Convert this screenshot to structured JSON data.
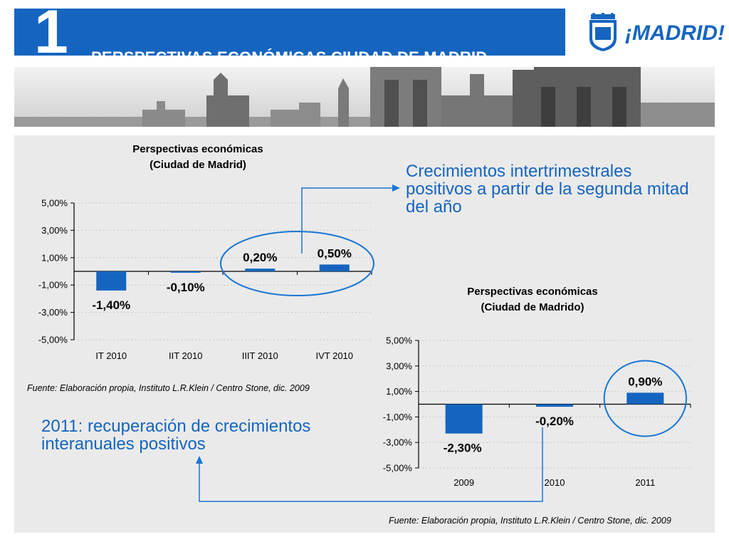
{
  "header": {
    "slide_number": "1",
    "title": "PERSPECTIVAS ECONÓMICAS CIUDAD DE MADRID",
    "color": "#1565c0"
  },
  "logo": {
    "text": "¡MADRID!",
    "icon": "madrid-coat-of-arms-icon"
  },
  "callouts": {
    "right": "Crecimientos intertrimestrales positivos a partir de la segunda mitad del año",
    "left": "2011: recuperación de crecimientos interanuales positivos"
  },
  "chart_data": [
    {
      "type": "bar",
      "title": "Perspectivas económicas",
      "subtitle": "(Ciudad de Madrid)",
      "categories": [
        "IT 2010",
        "IIT 2010",
        "IIIT 2010",
        "IVT 2010"
      ],
      "series": [
        {
          "values": [
            -1.4,
            -0.1,
            0.2,
            0.5
          ]
        }
      ],
      "data_labels": [
        "-1,40%",
        "-0,10%",
        "0,20%",
        "0,50%"
      ],
      "ylim": [
        -5,
        5
      ],
      "yticks": [
        "-5,00%",
        "-3,00%",
        "-1,00%",
        "1,00%",
        "3,00%",
        "5,00%"
      ],
      "highlighted_categories": [
        "IIIT 2010",
        "IVT 2010"
      ],
      "bar_color": "#1565c0",
      "source": "Fuente: Elaboración propia, Instituto L.R.Klein / Centro Stone, dic. 2009"
    },
    {
      "type": "bar",
      "title": "Perspectivas económicas",
      "subtitle": "(Ciudad de Madrido)",
      "categories": [
        "2009",
        "2010",
        "2011"
      ],
      "series": [
        {
          "values": [
            -2.3,
            -0.2,
            0.9
          ]
        }
      ],
      "data_labels": [
        "-2,30%",
        "-0,20%",
        "0,90%"
      ],
      "ylim": [
        -5,
        5
      ],
      "yticks": [
        "-5,00%",
        "-3,00%",
        "-1,00%",
        "1,00%",
        "3,00%",
        "5,00%"
      ],
      "highlighted_categories": [
        "2011"
      ],
      "bar_color": "#1565c0",
      "source": "Fuente: Elaboración propia, Instituto L.R.Klein / Centro Stone, dic. 2009"
    }
  ]
}
